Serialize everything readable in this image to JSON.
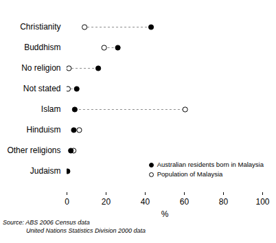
{
  "chart_data": {
    "type": "dot",
    "categories": [
      "Christianity",
      "Buddhism",
      "No religion",
      "Not stated",
      "Islam",
      "Hinduism",
      "Other religions",
      "Judaism"
    ],
    "series": [
      {
        "name": "Australian residents born in Malaysia",
        "color": "#000000",
        "marker": "filled circle",
        "values": [
          43,
          26,
          16,
          5,
          4,
          3.5,
          2,
          0.3
        ]
      },
      {
        "name": "Population of Malaysia",
        "color": "#000000",
        "marker": "open circle",
        "values": [
          9,
          19,
          1,
          0.5,
          60.4,
          6.3,
          3.4,
          null
        ]
      }
    ],
    "orientation": "horizontal",
    "line_style": "dashed",
    "xlabel": "%",
    "xlim": [
      0,
      100
    ],
    "xticks": [
      0,
      20,
      40,
      60,
      80,
      100
    ],
    "legend": "bottom-right",
    "source": [
      "Source: ABS 2006 Census data",
      "United Nations Statistics Division 2000 data"
    ]
  }
}
